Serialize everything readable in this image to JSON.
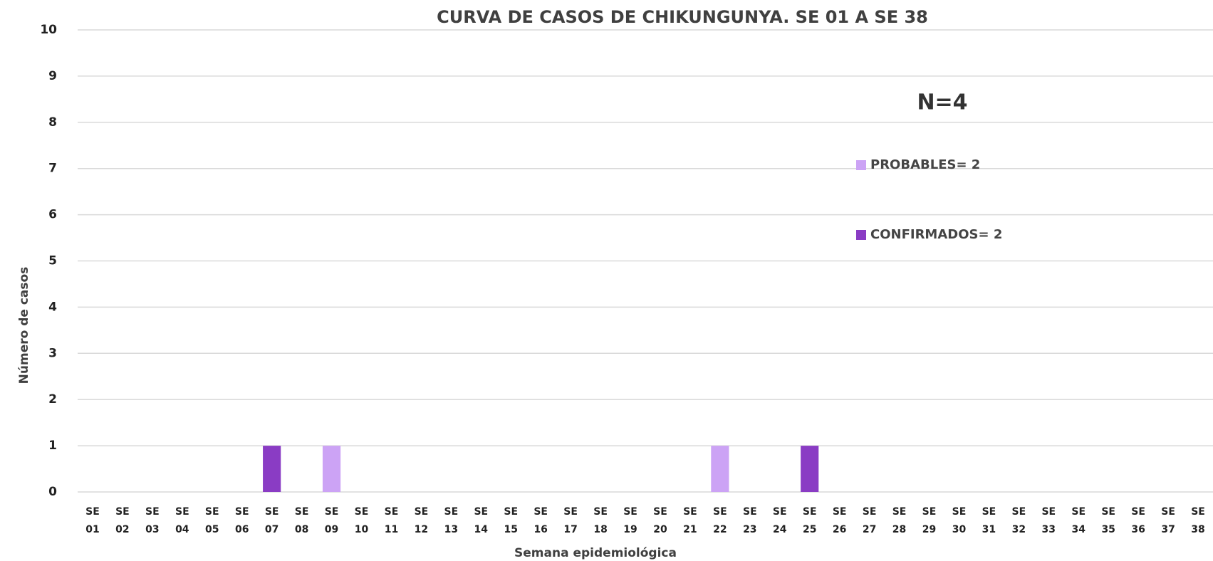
{
  "chart_data": {
    "type": "stacked-bar",
    "title": "CURVA DE CASOS DE CHIKUNGUNYA. SE 01 A SE 38",
    "annotation": "N=4",
    "x_label": "Semana epidemiológica",
    "y_label": "Número de casos",
    "categories": [
      "SE 01",
      "SE 02",
      "SE 03",
      "SE 04",
      "SE 05",
      "SE 06",
      "SE 07",
      "SE 08",
      "SE 09",
      "SE 10",
      "SE 11",
      "SE 12",
      "SE 13",
      "SE 14",
      "SE 15",
      "SE 16",
      "SE 17",
      "SE 18",
      "SE 19",
      "SE 20",
      "SE 21",
      "SE 22",
      "SE 23",
      "SE 24",
      "SE 25",
      "SE 26",
      "SE 27",
      "SE 28",
      "SE 29",
      "SE 30",
      "SE 31",
      "SE 32",
      "SE 33",
      "SE 34",
      "SE 35",
      "SE 36",
      "SE 37",
      "SE 38"
    ],
    "series": [
      {
        "name": "PROBABLES= 2",
        "color": "#cca3f5",
        "values": [
          0,
          0,
          0,
          0,
          0,
          0,
          0,
          0,
          1,
          0,
          0,
          0,
          0,
          0,
          0,
          0,
          0,
          0,
          0,
          0,
          0,
          1,
          0,
          0,
          0,
          0,
          0,
          0,
          0,
          0,
          0,
          0,
          0,
          0,
          0,
          0,
          0,
          0
        ]
      },
      {
        "name": "CONFIRMADOS= 2",
        "color": "#8a3cc4",
        "values": [
          0,
          0,
          0,
          0,
          0,
          0,
          1,
          0,
          0,
          0,
          0,
          0,
          0,
          0,
          0,
          0,
          0,
          0,
          0,
          0,
          0,
          0,
          0,
          0,
          1,
          0,
          0,
          0,
          0,
          0,
          0,
          0,
          0,
          0,
          0,
          0,
          0,
          0
        ]
      }
    ],
    "ylim": [
      0,
      10
    ],
    "yticks": [
      0,
      1,
      2,
      3,
      4,
      5,
      6,
      7,
      8,
      9,
      10
    ],
    "grid": true
  }
}
